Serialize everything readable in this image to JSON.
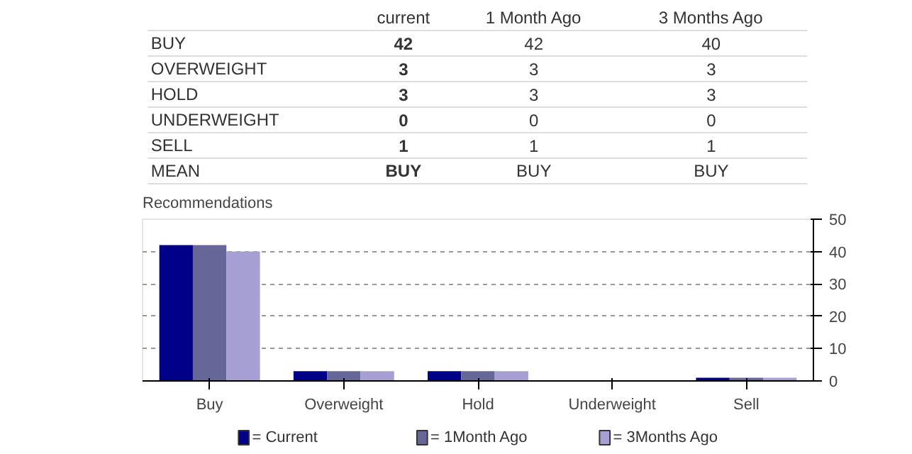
{
  "chart_data": [
    {
      "type": "heatmap",
      "categories": [
        "current",
        "1 Month Ago",
        "3 Months Ago"
      ],
      "y_categories": [
        "BUY",
        "OVERWEIGHT",
        "HOLD",
        "UNDERWEIGHT",
        "SELL",
        "MEAN"
      ],
      "cells": [
        [
          null,
          null,
          null
        ],
        [
          null,
          null,
          null
        ],
        [
          null,
          null,
          null
        ],
        [
          null,
          null,
          null
        ],
        [
          null,
          null,
          null
        ],
        [
          null,
          null,
          null
        ]
      ],
      "cell_labels": [
        [
          "42",
          "42",
          "40"
        ],
        [
          "3",
          "3",
          "3"
        ],
        [
          "3",
          "3",
          "3"
        ],
        [
          "0",
          "0",
          "0"
        ],
        [
          "1",
          "1",
          "1"
        ],
        [
          "BUY",
          "BUY",
          "BUY"
        ]
      ]
    },
    {
      "type": "bar",
      "title": "Recommendations",
      "categories": [
        "Buy",
        "Overweight",
        "Hold",
        "Underweight",
        "Sell"
      ],
      "series": [
        {
          "name": "= Current",
          "color": "#000088",
          "values": [
            42,
            3,
            3,
            0,
            1
          ]
        },
        {
          "name": "= 1Month Ago",
          "color": "#666699",
          "values": [
            42,
            3,
            3,
            0,
            1
          ]
        },
        {
          "name": "= 3Months Ago",
          "color": "#a59fd4",
          "values": [
            40,
            3,
            3,
            0,
            1
          ]
        }
      ],
      "ylim": [
        0,
        50
      ],
      "yticks": [
        0,
        10,
        20,
        30,
        40,
        50
      ],
      "grid": "y",
      "legend": "bottom"
    }
  ]
}
